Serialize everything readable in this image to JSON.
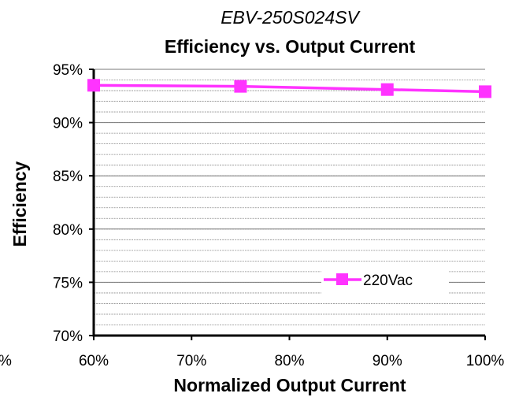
{
  "chart_data": {
    "type": "line",
    "model": "EBV-250S024SV",
    "title": "Efficiency vs. Output Current",
    "xlabel": "Normalized Output Current",
    "ylabel": "Efficiency",
    "x": [
      60,
      75,
      90,
      100
    ],
    "xlim": [
      60,
      100
    ],
    "ylim": [
      70,
      95
    ],
    "x_ticks": [
      60,
      70,
      80,
      90,
      100
    ],
    "x_tick_labels": [
      "60%",
      "70%",
      "80%",
      "90%",
      "100%"
    ],
    "y_ticks": [
      70,
      75,
      80,
      85,
      90,
      95
    ],
    "y_tick_labels": [
      "70%",
      "75%",
      "80%",
      "85%",
      "90%",
      "95%"
    ],
    "left_edge_label": "%",
    "series": [
      {
        "name": "220Vac",
        "color": "#ff33ff",
        "marker": "square",
        "values": [
          93.5,
          93.4,
          93.1,
          92.9
        ]
      }
    ],
    "grid": "horizontal-minor",
    "legend_position": "lower-right"
  }
}
